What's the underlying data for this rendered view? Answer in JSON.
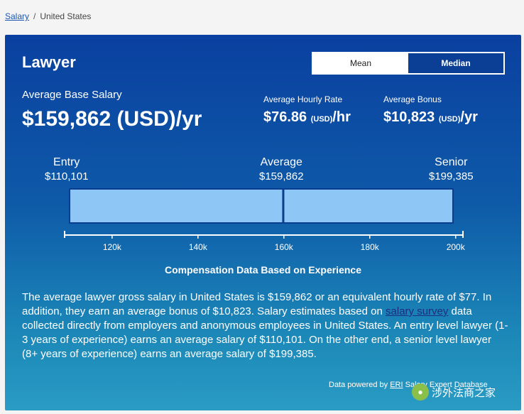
{
  "breadcrumb": {
    "link": "Salary",
    "separator": "/",
    "current": "United States"
  },
  "title": "Lawyer",
  "toggle": {
    "mean": "Mean",
    "median": "Median"
  },
  "base": {
    "label": "Average Base Salary",
    "value": "$159,862 (USD)/yr"
  },
  "hourly": {
    "label": "Average Hourly Rate",
    "amount": "$76.86",
    "unit": "(USD)",
    "suffix": "/hr"
  },
  "bonus": {
    "label": "Average Bonus",
    "amount": "$10,823",
    "unit": "(USD)",
    "suffix": "/yr"
  },
  "levels": {
    "entry": {
      "name": "Entry",
      "value": "$110,101"
    },
    "average": {
      "name": "Average",
      "value": "$159,862"
    },
    "senior": {
      "name": "Senior",
      "value": "$199,385"
    }
  },
  "chart_data": {
    "type": "bar",
    "range_low": 110101,
    "average": 159862,
    "range_high": 199385,
    "ticks": [
      120000,
      140000,
      160000,
      180000,
      200000
    ],
    "tick_labels": [
      "120k",
      "140k",
      "160k",
      "180k",
      "200k"
    ],
    "xlim": [
      110101,
      199385
    ],
    "bar_color": "#8ec6f5"
  },
  "caption": "Compensation Data Based on Experience",
  "description": {
    "part1": "The average lawyer gross salary in United States is $159,862 or an equivalent hourly rate of $77. In addition, they earn an average bonus of $10,823. Salary estimates based on ",
    "link": "salary survey",
    "part2": " data collected directly from employers and anonymous employees in United States. An entry level lawyer (1-3 years of experience) earns an average salary of $110,101. On the other end, a senior level lawyer (8+ years of experience) earns an average salary of $199,385."
  },
  "powered": {
    "prefix": "Data powered by ",
    "link": "ERI",
    "suffix": " Salary Expert Database"
  },
  "watermark": "涉外法商之家"
}
